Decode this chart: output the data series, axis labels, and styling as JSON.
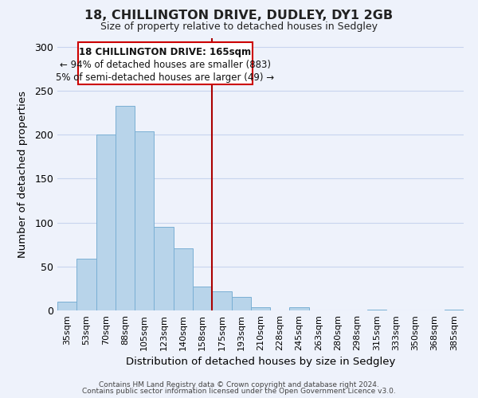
{
  "title": "18, CHILLINGTON DRIVE, DUDLEY, DY1 2GB",
  "subtitle": "Size of property relative to detached houses in Sedgley",
  "xlabel": "Distribution of detached houses by size in Sedgley",
  "ylabel": "Number of detached properties",
  "bar_color": "#b8d4ea",
  "bar_edge_color": "#7aafd4",
  "categories": [
    "35sqm",
    "53sqm",
    "70sqm",
    "88sqm",
    "105sqm",
    "123sqm",
    "140sqm",
    "158sqm",
    "175sqm",
    "193sqm",
    "210sqm",
    "228sqm",
    "245sqm",
    "263sqm",
    "280sqm",
    "298sqm",
    "315sqm",
    "333sqm",
    "350sqm",
    "368sqm",
    "385sqm"
  ],
  "values": [
    10,
    59,
    200,
    233,
    204,
    95,
    71,
    27,
    22,
    15,
    4,
    0,
    4,
    0,
    0,
    0,
    1,
    0,
    0,
    0,
    1
  ],
  "ylim": [
    0,
    310
  ],
  "yticks": [
    0,
    50,
    100,
    150,
    200,
    250,
    300
  ],
  "property_line_label": "18 CHILLINGTON DRIVE: 165sqm",
  "annotation_line1": "← 94% of detached houses are smaller (883)",
  "annotation_line2": "5% of semi-detached houses are larger (49) →",
  "box_color": "#ffffff",
  "box_edge_color": "#cc0000",
  "line_color": "#aa0000",
  "footer1": "Contains HM Land Registry data © Crown copyright and database right 2024.",
  "footer2": "Contains public sector information licensed under the Open Government Licence v3.0.",
  "background_color": "#eef2fb",
  "grid_color": "#c8d4ee"
}
